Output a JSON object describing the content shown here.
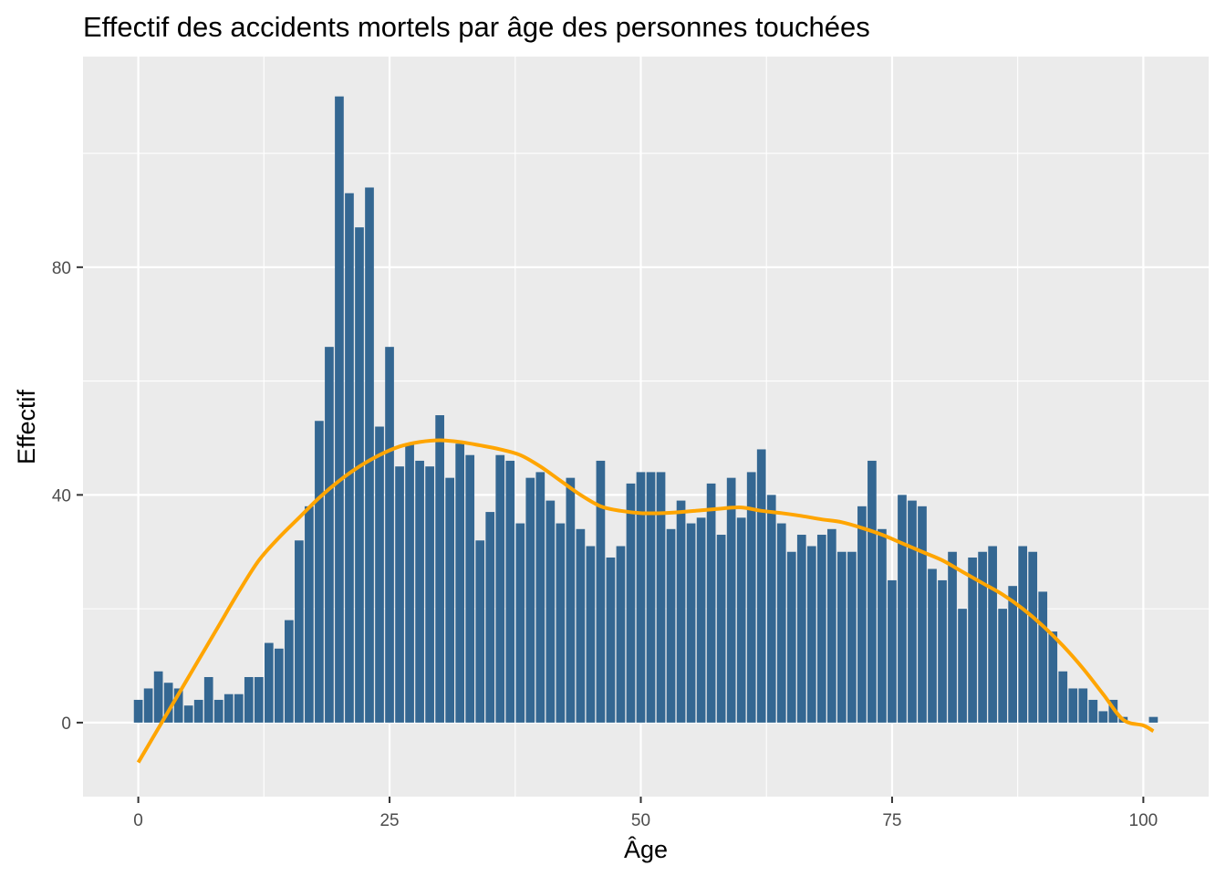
{
  "chart_data": {
    "type": "bar",
    "title": "Effectif des accidents mortels par âge des personnes touchées",
    "xlabel": "Âge",
    "ylabel": "Effectif",
    "xlim": [
      -5.5,
      106.5
    ],
    "ylim": [
      -13,
      117
    ],
    "x_ticks": [
      "0",
      "25",
      "50",
      "75",
      "100"
    ],
    "y_ticks": [
      "0",
      "40",
      "80"
    ],
    "grid": true,
    "legend": "none",
    "colors": {
      "panel": "#EBEBEB",
      "grid": "#FFFFFF",
      "bar": "#346792",
      "smooth": "#FFA500",
      "tick": "#333333"
    },
    "x": [
      0,
      1,
      2,
      3,
      4,
      5,
      6,
      7,
      8,
      9,
      10,
      11,
      12,
      13,
      14,
      15,
      16,
      17,
      18,
      19,
      20,
      21,
      22,
      23,
      24,
      25,
      26,
      27,
      28,
      29,
      30,
      31,
      32,
      33,
      34,
      35,
      36,
      37,
      38,
      39,
      40,
      41,
      42,
      43,
      44,
      45,
      46,
      47,
      48,
      49,
      50,
      51,
      52,
      53,
      54,
      55,
      56,
      57,
      58,
      59,
      60,
      61,
      62,
      63,
      64,
      65,
      66,
      67,
      68,
      69,
      70,
      71,
      72,
      73,
      74,
      75,
      76,
      77,
      78,
      79,
      80,
      81,
      82,
      83,
      84,
      85,
      86,
      87,
      88,
      89,
      90,
      91,
      92,
      93,
      94,
      95,
      96,
      97,
      98,
      99,
      100,
      101
    ],
    "values": [
      4,
      6,
      9,
      7,
      6,
      3,
      4,
      8,
      4,
      5,
      5,
      8,
      8,
      14,
      13,
      18,
      32,
      38,
      53,
      66,
      110,
      93,
      87,
      94,
      52,
      66,
      45,
      49,
      46,
      45,
      54,
      43,
      49,
      47,
      32,
      37,
      47,
      46,
      35,
      43,
      44,
      39,
      35,
      43,
      34,
      31,
      46,
      29,
      31,
      42,
      44,
      44,
      44,
      34,
      39,
      35,
      36,
      42,
      33,
      43,
      36,
      44,
      48,
      40,
      35,
      30,
      33,
      31,
      33,
      34,
      30,
      30,
      38,
      46,
      34,
      25,
      40,
      39,
      38,
      27,
      25,
      30,
      20,
      29,
      30,
      31,
      20,
      24,
      31,
      30,
      23,
      16,
      9,
      6,
      6,
      4,
      2,
      4,
      1,
      0,
      0,
      1
    ],
    "smooth": {
      "x": [
        0,
        2,
        4,
        6,
        8,
        10,
        12,
        14,
        16,
        18,
        20,
        22,
        24,
        26,
        28,
        30,
        32,
        34,
        36,
        38,
        40,
        42,
        44,
        46,
        48,
        50,
        52,
        54,
        56,
        58,
        60,
        62,
        64,
        66,
        68,
        70,
        72,
        74,
        76,
        78,
        80,
        82,
        84,
        86,
        88,
        90,
        92,
        94,
        96,
        98,
        100,
        101
      ],
      "y": [
        -7,
        -1,
        5,
        11,
        17,
        23,
        28.5,
        32.5,
        36,
        39.5,
        42.5,
        45,
        47,
        48.5,
        49.3,
        49.6,
        49.3,
        48.7,
        48,
        47,
        45,
        42.5,
        40,
        38,
        37.2,
        36.8,
        36.8,
        37,
        37.3,
        37.6,
        37.8,
        37.2,
        36.8,
        36.3,
        35.7,
        35.2,
        34.2,
        33,
        31.5,
        30,
        28.5,
        26.5,
        24.5,
        22.5,
        20,
        17,
        13.5,
        9.5,
        5,
        0.5,
        -0.5,
        -1.5
      ]
    }
  }
}
